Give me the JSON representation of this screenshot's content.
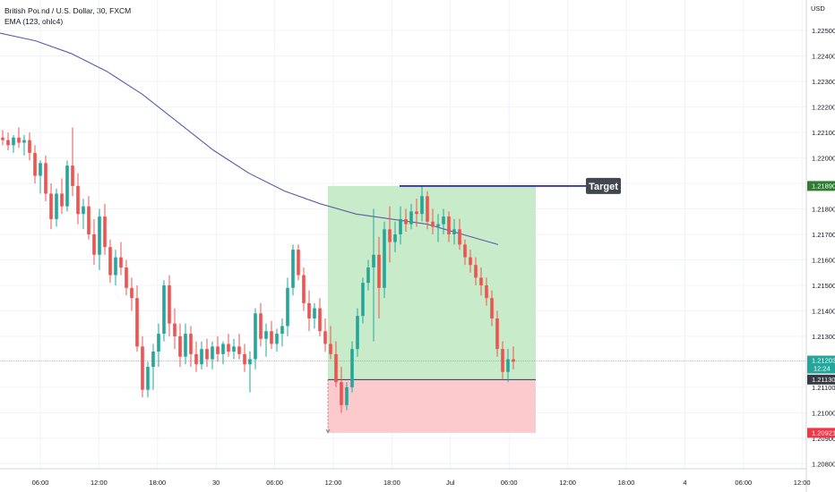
{
  "header": {
    "symbol": "British Pound / U.S. Dollar, 30, FXCM",
    "indicator": "EMA (123, ohlc4)",
    "currency": "USD"
  },
  "price_scale": {
    "min": 1.2078,
    "max": 1.2262,
    "tick_labels": [
      "1.22500",
      "1.22400",
      "1.22300",
      "1.22200",
      "1.22100",
      "1.22000",
      "1.21900",
      "1.21800",
      "1.21700",
      "1.21600",
      "1.21500",
      "1.21400",
      "1.21300",
      "1.21100",
      "1.21000",
      "1.20900",
      "1.20800"
    ]
  },
  "time_scale": {
    "labels": [
      "06:00",
      "12:00",
      "18:00",
      "30",
      "06:00",
      "12:00",
      "18:00",
      "Jul",
      "06:00",
      "12:00",
      "18:00",
      "4",
      "06:00",
      "12:00"
    ]
  },
  "price_tags": [
    {
      "label": "1.21890",
      "color": "#2e7d32"
    },
    {
      "label": "1.21203",
      "sub": "12:24",
      "color": "#26a69a"
    },
    {
      "label": "1.21130",
      "color": "#363a45"
    },
    {
      "label": "1.20921",
      "color": "#f23645"
    }
  ],
  "target": {
    "label": "Target",
    "price": 1.2189,
    "line_color": "#1a1aa8"
  },
  "position": {
    "entry": 1.2113,
    "take_profit": 1.2189,
    "stop_loss": 1.20921,
    "profit_color": "#c8ecc9",
    "loss_color": "#fcc9cc"
  },
  "chart_data": {
    "type": "candlestick",
    "instrument": "GBPUSD",
    "timeframe": "30m",
    "up_color": "#26a69a",
    "down_color": "#ef5350",
    "ema_color": "#5b5ba8",
    "candles": [
      [
        1.2208,
        1.2211,
        1.2205,
        1.2207
      ],
      [
        1.2207,
        1.221,
        1.2203,
        1.2205
      ],
      [
        1.2205,
        1.2209,
        1.2202,
        1.2208
      ],
      [
        1.2208,
        1.2212,
        1.2204,
        1.2206
      ],
      [
        1.2206,
        1.2209,
        1.2201,
        1.2207
      ],
      [
        1.2207,
        1.221,
        1.2199,
        1.2202
      ],
      [
        1.2202,
        1.2205,
        1.219,
        1.2193
      ],
      [
        1.2193,
        1.2199,
        1.2186,
        1.2198
      ],
      [
        1.2198,
        1.2201,
        1.2183,
        1.2186
      ],
      [
        1.2186,
        1.219,
        1.2172,
        1.2176
      ],
      [
        1.2176,
        1.2188,
        1.2173,
        1.2186
      ],
      [
        1.2186,
        1.2192,
        1.2178,
        1.2181
      ],
      [
        1.2181,
        1.2199,
        1.2179,
        1.2197
      ],
      [
        1.2197,
        1.2212,
        1.2185,
        1.2189
      ],
      [
        1.2189,
        1.2194,
        1.2174,
        1.2178
      ],
      [
        1.2178,
        1.2184,
        1.2172,
        1.2181
      ],
      [
        1.2181,
        1.2185,
        1.2168,
        1.217
      ],
      [
        1.217,
        1.2176,
        1.2158,
        1.2162
      ],
      [
        1.2162,
        1.218,
        1.2156,
        1.2177
      ],
      [
        1.2177,
        1.2182,
        1.2162,
        1.2165
      ],
      [
        1.2165,
        1.2168,
        1.2151,
        1.2154
      ],
      [
        1.2154,
        1.2164,
        1.215,
        1.2161
      ],
      [
        1.2161,
        1.2167,
        1.2154,
        1.2157
      ],
      [
        1.2157,
        1.216,
        1.2146,
        1.2149
      ],
      [
        1.2149,
        1.2153,
        1.214,
        1.2145
      ],
      [
        1.2145,
        1.215,
        1.2124,
        1.2126
      ],
      [
        1.2126,
        1.213,
        1.2106,
        1.2109
      ],
      [
        1.2109,
        1.212,
        1.2106,
        1.2118
      ],
      [
        1.2118,
        1.2127,
        1.2109,
        1.2124
      ],
      [
        1.2124,
        1.2135,
        1.2118,
        1.2131
      ],
      [
        1.2131,
        1.2152,
        1.2128,
        1.215
      ],
      [
        1.215,
        1.2154,
        1.213,
        1.2135
      ],
      [
        1.2135,
        1.2141,
        1.2125,
        1.213
      ],
      [
        1.213,
        1.2135,
        1.2118,
        1.2122
      ],
      [
        1.2122,
        1.2135,
        1.2119,
        1.2131
      ],
      [
        1.2131,
        1.2134,
        1.2118,
        1.2123
      ],
      [
        1.2123,
        1.2128,
        1.2116,
        1.2119
      ],
      [
        1.2119,
        1.2128,
        1.2117,
        1.2125
      ],
      [
        1.2125,
        1.2129,
        1.2118,
        1.2121
      ],
      [
        1.2121,
        1.2128,
        1.2117,
        1.2126
      ],
      [
        1.2126,
        1.213,
        1.212,
        1.2123
      ],
      [
        1.2123,
        1.2128,
        1.2119,
        1.2127
      ],
      [
        1.2127,
        1.2131,
        1.2122,
        1.2124
      ],
      [
        1.2124,
        1.2129,
        1.2121,
        1.2126
      ],
      [
        1.2126,
        1.2131,
        1.2121,
        1.2123
      ],
      [
        1.2123,
        1.2127,
        1.2116,
        1.2119
      ],
      [
        1.2119,
        1.2124,
        1.2108,
        1.2121
      ],
      [
        1.2121,
        1.2141,
        1.2117,
        1.2139
      ],
      [
        1.2139,
        1.2143,
        1.2126,
        1.2129
      ],
      [
        1.2129,
        1.2135,
        1.2122,
        1.2132
      ],
      [
        1.2132,
        1.2136,
        1.2125,
        1.2127
      ],
      [
        1.2127,
        1.2133,
        1.2124,
        1.2131
      ],
      [
        1.2131,
        1.2137,
        1.2126,
        1.2134
      ],
      [
        1.2134,
        1.2153,
        1.213,
        1.2149
      ],
      [
        1.2149,
        1.2166,
        1.2146,
        1.2164
      ],
      [
        1.2164,
        1.2166,
        1.2152,
        1.2154
      ],
      [
        1.2154,
        1.2157,
        1.214,
        1.2143
      ],
      [
        1.2143,
        1.2148,
        1.2132,
        1.2137
      ],
      [
        1.2137,
        1.2143,
        1.2133,
        1.2141
      ],
      [
        1.2141,
        1.2145,
        1.213,
        1.2132
      ],
      [
        1.2132,
        1.2137,
        1.2124,
        1.2127
      ],
      [
        1.2127,
        1.2134,
        1.2121,
        1.2123
      ],
      [
        1.2123,
        1.2128,
        1.211,
        1.2112
      ],
      [
        1.2112,
        1.2118,
        1.21,
        1.2103
      ],
      [
        1.2103,
        1.2112,
        1.2101,
        1.211
      ],
      [
        1.211,
        1.2128,
        1.2108,
        1.2125
      ],
      [
        1.2125,
        1.2141,
        1.2122,
        1.2138
      ],
      [
        1.2138,
        1.2153,
        1.2135,
        1.2151
      ],
      [
        1.2151,
        1.216,
        1.2148,
        1.2157
      ],
      [
        1.2157,
        1.218,
        1.2128,
        1.2162
      ],
      [
        1.2162,
        1.2169,
        1.2137,
        1.2149
      ],
      [
        1.2149,
        1.2175,
        1.2145,
        1.2172
      ],
      [
        1.2172,
        1.2181,
        1.2159,
        1.2167
      ],
      [
        1.2167,
        1.2175,
        1.2163,
        1.217
      ],
      [
        1.217,
        1.2181,
        1.2166,
        1.2176
      ],
      [
        1.2176,
        1.218,
        1.2171,
        1.2174
      ],
      [
        1.2174,
        1.2182,
        1.2172,
        1.2179
      ],
      [
        1.2179,
        1.2184,
        1.2173,
        1.2178
      ],
      [
        1.2178,
        1.2189,
        1.2175,
        1.2185
      ],
      [
        1.2185,
        1.2187,
        1.2172,
        1.2175
      ],
      [
        1.2175,
        1.218,
        1.217,
        1.2173
      ],
      [
        1.2173,
        1.2178,
        1.2167,
        1.2174
      ],
      [
        1.2174,
        1.218,
        1.217,
        1.2177
      ],
      [
        1.2177,
        1.2179,
        1.2167,
        1.217
      ],
      [
        1.217,
        1.2176,
        1.2166,
        1.2172
      ],
      [
        1.2172,
        1.2176,
        1.2164,
        1.2166
      ],
      [
        1.2166,
        1.2168,
        1.2158,
        1.2161
      ],
      [
        1.2161,
        1.2164,
        1.2155,
        1.2158
      ],
      [
        1.2158,
        1.2161,
        1.215,
        1.2153
      ],
      [
        1.2153,
        1.2157,
        1.2146,
        1.215
      ],
      [
        1.215,
        1.2153,
        1.2142,
        1.2145
      ],
      [
        1.2145,
        1.2148,
        1.2134,
        1.2137
      ],
      [
        1.2137,
        1.214,
        1.2122,
        1.2125
      ],
      [
        1.2125,
        1.2128,
        1.2113,
        1.2116
      ],
      [
        1.2116,
        1.2125,
        1.2112,
        1.2121
      ],
      [
        1.2121,
        1.2126,
        1.2117,
        1.212
      ]
    ],
    "ema": [
      1.2249,
      1.2246,
      1.2241,
      1.2234,
      1.2225,
      1.2214,
      1.2203,
      1.2194,
      1.2187,
      1.2182,
      1.2178,
      1.2176,
      1.2174,
      1.217,
      1.2166
    ],
    "ylim": [
      1.2078,
      1.2262
    ]
  }
}
